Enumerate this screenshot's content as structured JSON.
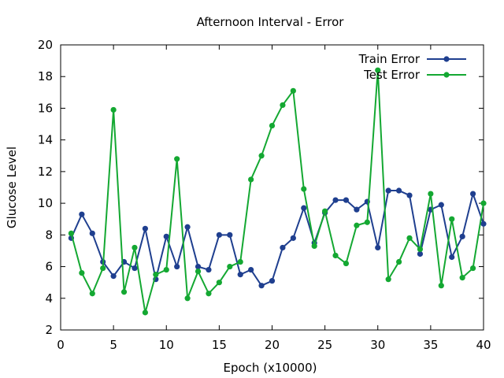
{
  "chart_data": {
    "type": "line",
    "title": "Afternoon Interval - Error",
    "xlabel": "Epoch (x10000)",
    "ylabel": "Glucose Level",
    "xlim": [
      0,
      40
    ],
    "ylim": [
      2,
      20
    ],
    "xticks": [
      0,
      5,
      10,
      15,
      20,
      25,
      30,
      35,
      40
    ],
    "yticks": [
      2,
      4,
      6,
      8,
      10,
      12,
      14,
      16,
      18,
      20
    ],
    "grid": false,
    "legend_position": "top-right",
    "x": [
      1,
      2,
      3,
      4,
      5,
      6,
      7,
      8,
      9,
      10,
      11,
      12,
      13,
      14,
      15,
      16,
      17,
      18,
      19,
      20,
      21,
      22,
      23,
      24,
      25,
      26,
      27,
      28,
      29,
      30,
      31,
      32,
      33,
      34,
      35,
      36,
      37,
      38,
      39,
      40
    ],
    "series": [
      {
        "name": "Train Error",
        "color": "#1f3f8f",
        "values": [
          7.8,
          9.3,
          8.1,
          6.3,
          5.4,
          6.3,
          5.9,
          8.4,
          5.2,
          7.9,
          6.0,
          8.5,
          6.0,
          5.8,
          8.0,
          8.0,
          5.5,
          5.8,
          4.8,
          5.1,
          7.2,
          7.8,
          9.7,
          7.5,
          9.4,
          10.2,
          10.2,
          9.6,
          10.1,
          7.2,
          10.8,
          10.8,
          10.5,
          6.8,
          9.6,
          9.9,
          6.6,
          7.9,
          10.6,
          8.7
        ]
      },
      {
        "name": "Test Error",
        "color": "#14a832",
        "values": [
          8.1,
          5.6,
          4.3,
          5.9,
          15.9,
          4.4,
          7.2,
          3.1,
          5.5,
          5.8,
          12.8,
          4.0,
          5.7,
          4.3,
          5.0,
          6.0,
          6.3,
          11.5,
          13.0,
          14.9,
          16.2,
          17.1,
          10.9,
          7.3,
          9.5,
          6.7,
          6.2,
          8.6,
          8.8,
          18.4,
          5.2,
          6.3,
          7.8,
          7.1,
          10.6,
          4.8,
          9.0,
          5.3,
          5.9,
          10.0
        ]
      }
    ]
  }
}
